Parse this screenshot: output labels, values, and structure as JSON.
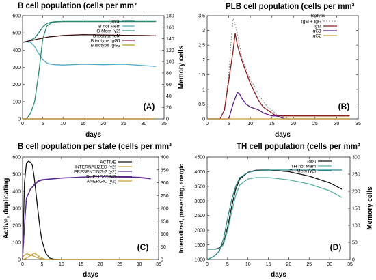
{
  "chart_data": [
    {
      "type": "line",
      "title": "B cell population (cells per mm³",
      "xlabel": "days",
      "ylabel": "",
      "y2label": "Memory cells",
      "panel_label": "(A)",
      "xlim": [
        0,
        35
      ],
      "ylim": [
        0,
        600
      ],
      "y2lim": [
        0,
        180
      ],
      "x_ticks": [
        0,
        5,
        10,
        15,
        20,
        25,
        30,
        35
      ],
      "y_ticks": [
        0,
        100,
        200,
        300,
        400,
        500,
        600
      ],
      "y2_ticks": [
        0,
        20,
        40,
        60,
        80,
        100,
        120,
        140,
        160,
        180
      ],
      "legend_position": "top-right",
      "series": [
        {
          "name": "Total",
          "color": "#1a7a6e",
          "axis": "left",
          "x": [
            0,
            1,
            2,
            3,
            4,
            5,
            6,
            7,
            8,
            10,
            15,
            20,
            25,
            30,
            33
          ],
          "y": [
            445,
            450,
            458,
            470,
            500,
            535,
            555,
            562,
            565,
            566,
            566,
            566,
            566,
            566,
            566
          ]
        },
        {
          "name": "B not Mem",
          "color": "#4aa8c8",
          "axis": "left",
          "x": [
            0,
            1,
            2,
            3,
            4,
            5,
            6,
            7,
            8,
            10,
            15,
            20,
            25,
            30,
            33
          ],
          "y": [
            445,
            448,
            445,
            420,
            380,
            345,
            325,
            318,
            315,
            313,
            318,
            315,
            318,
            310,
            305
          ]
        },
        {
          "name": "B Mem (y2)",
          "color": "#2a8a6a",
          "axis": "right",
          "x": [
            0,
            1,
            2,
            3,
            4,
            5,
            6,
            7,
            8,
            10,
            15,
            20,
            25,
            30,
            33
          ],
          "y": [
            0,
            0,
            10,
            30,
            80,
            140,
            162,
            167,
            169,
            170,
            170,
            170,
            170,
            170,
            170
          ]
        },
        {
          "name": "B isotype IgM",
          "color": "#3a0a0a",
          "axis": "left",
          "x": [
            0,
            1,
            2,
            3,
            4,
            5,
            6,
            7,
            8,
            10,
            15,
            20,
            25,
            30,
            33
          ],
          "y": [
            445,
            450,
            455,
            460,
            465,
            470,
            475,
            478,
            480,
            485,
            490,
            488,
            486,
            485,
            483
          ]
        },
        {
          "name": "B isotype IgG1",
          "color": "#8a1a4a",
          "axis": "left",
          "x": [
            0,
            10,
            20,
            33
          ],
          "y": [
            0,
            0,
            0,
            0
          ]
        },
        {
          "name": "B isotype IgG2",
          "color": "#b89a20",
          "axis": "left",
          "x": [
            0,
            10,
            20,
            33
          ],
          "y": [
            0,
            0,
            0,
            0
          ]
        }
      ]
    },
    {
      "type": "line",
      "title": "PLB cell population (cells per mm³",
      "xlabel": "days",
      "ylabel": "",
      "panel_label": "(B)",
      "xlim": [
        0,
        35
      ],
      "ylim": [
        0,
        3.5
      ],
      "x_ticks": [
        0,
        5,
        10,
        15,
        20,
        25,
        30,
        35
      ],
      "y_ticks": [
        0,
        0.5,
        1,
        1.5,
        2,
        2.5,
        3,
        3.5
      ],
      "legend_title": "Isotype",
      "legend_position": "top-right",
      "series": [
        {
          "name": "IgM + IgG",
          "color": "#888888",
          "dashed": true,
          "x": [
            0,
            3,
            4,
            5,
            5.5,
            6,
            6.5,
            7,
            7.5,
            8,
            9,
            10,
            11,
            12,
            13,
            14,
            15,
            16,
            17,
            18,
            19,
            33
          ],
          "y": [
            0,
            0,
            0.3,
            1.5,
            2.5,
            3.4,
            3.2,
            2.9,
            2.5,
            2.1,
            1.7,
            1.3,
            1.1,
            0.8,
            0.6,
            0.4,
            0.3,
            0.15,
            0.1,
            0.05,
            0,
            0
          ]
        },
        {
          "name": "IgM",
          "color": "#8a1a1a",
          "x": [
            0,
            3,
            4,
            5,
            6,
            6.5,
            7,
            8,
            9,
            10,
            11,
            12,
            13,
            14,
            15,
            16,
            17,
            33
          ],
          "y": [
            0,
            0,
            0.3,
            1.3,
            2.3,
            2.9,
            2.5,
            2.0,
            1.6,
            1.2,
            0.9,
            0.6,
            0.4,
            0.3,
            0.2,
            0.1,
            0.1,
            0.1
          ]
        },
        {
          "name": "IgG1",
          "color": "#5a1a8a",
          "x": [
            0,
            5,
            6,
            7,
            7.5,
            8,
            9,
            10,
            11,
            12,
            13,
            14,
            15,
            16,
            17,
            18,
            19,
            33
          ],
          "y": [
            0,
            0,
            0.5,
            0.9,
            0.85,
            0.7,
            0.5,
            0.4,
            0.35,
            0.3,
            0.2,
            0.15,
            0.1,
            0.1,
            0.05,
            0,
            0,
            0
          ]
        },
        {
          "name": "IgG2",
          "color": "#c8a030",
          "x": [
            0,
            10,
            20,
            33
          ],
          "y": [
            0,
            0,
            0,
            0
          ]
        }
      ]
    },
    {
      "type": "line",
      "title": "B cell population per state (cells per mm³",
      "xlabel": "days",
      "ylabel": "Active, duplicating",
      "y2label": "Internalized, presenting, anergic",
      "panel_label": "(C)",
      "xlim": [
        0,
        35
      ],
      "ylim": [
        0,
        600
      ],
      "y2lim": [
        0,
        400
      ],
      "x_ticks": [
        0,
        5,
        10,
        15,
        20,
        25,
        30,
        35
      ],
      "y_ticks": [
        0,
        100,
        200,
        300,
        400,
        500,
        600
      ],
      "y2_ticks": [
        0,
        50,
        100,
        150,
        200,
        250,
        300,
        350,
        400
      ],
      "legend_position": "top-right",
      "series": [
        {
          "name": "ACTIVE",
          "color": "#111111",
          "axis": "left",
          "x": [
            0,
            0.5,
            1,
            1.5,
            2,
            2.5,
            3,
            3.5,
            4,
            4.5,
            5,
            6,
            7,
            8,
            10,
            33
          ],
          "y": [
            0,
            450,
            565,
            575,
            570,
            555,
            480,
            380,
            280,
            180,
            110,
            35,
            8,
            2,
            0,
            0
          ]
        },
        {
          "name": "INTERNALIZED (y2)",
          "color": "#c8a030",
          "axis": "right",
          "x": [
            0,
            1,
            2,
            3,
            4,
            5,
            6,
            33
          ],
          "y": [
            10,
            22,
            18,
            12,
            6,
            2,
            0,
            0
          ]
        },
        {
          "name": "PRESENTING-2 (y2)",
          "color": "#5a2a8a",
          "axis": "right",
          "x": [
            0,
            0.5,
            1,
            2,
            3,
            4,
            5,
            6,
            7,
            8,
            10,
            15,
            20,
            25,
            30,
            33
          ],
          "y": [
            10,
            130,
            240,
            275,
            290,
            305,
            310,
            312,
            314,
            315,
            318,
            322,
            325,
            322,
            320,
            315
          ]
        },
        {
          "name": "DUPLICATING",
          "color": "#5a2a8a",
          "axis": "left",
          "x": [
            0,
            0.5,
            1,
            2,
            3,
            4,
            5,
            6,
            7,
            8,
            10,
            15,
            20,
            25,
            30,
            33
          ],
          "y": [
            0,
            200,
            360,
            410,
            440,
            460,
            468,
            470,
            472,
            474,
            478,
            482,
            488,
            485,
            482,
            475
          ]
        },
        {
          "name": "ANERGIC (y2)",
          "color": "#c8a030",
          "axis": "right",
          "x": [
            0,
            1,
            2,
            3,
            4,
            5,
            6,
            33
          ],
          "y": [
            0,
            5,
            15,
            25,
            15,
            5,
            0,
            0
          ]
        }
      ]
    },
    {
      "type": "line",
      "title": "TH cell population (cells per mm³",
      "xlabel": "days",
      "ylabel": "",
      "y2label": "Memory cells",
      "panel_label": "(D)",
      "xlim": [
        0,
        35
      ],
      "ylim": [
        1000,
        4500
      ],
      "y2lim": [
        0,
        300
      ],
      "x_ticks": [
        0,
        5,
        10,
        15,
        20,
        25,
        30,
        35
      ],
      "y_ticks": [
        1000,
        1500,
        2000,
        2500,
        3000,
        3500,
        4000,
        4500
      ],
      "y2_ticks": [
        0,
        50,
        100,
        150,
        200,
        250,
        300
      ],
      "legend_position": "top-right",
      "series": [
        {
          "name": "Total",
          "color": "#111111",
          "axis": "left",
          "x": [
            0,
            2,
            3,
            4,
            5,
            6,
            7,
            8,
            10,
            12,
            15,
            20,
            25,
            30,
            33
          ],
          "y": [
            1350,
            1350,
            1400,
            1550,
            2100,
            2800,
            3400,
            3750,
            3980,
            4050,
            4060,
            4000,
            3850,
            3620,
            3400
          ]
        },
        {
          "name": "TH not Mem",
          "color": "#5ab0a0",
          "axis": "left",
          "x": [
            0,
            2,
            3,
            4,
            5,
            6,
            7,
            8,
            10,
            12,
            15,
            20,
            25,
            30,
            33
          ],
          "y": [
            1350,
            1350,
            1380,
            1500,
            2000,
            2600,
            3200,
            3550,
            3750,
            3800,
            3800,
            3720,
            3580,
            3350,
            3120
          ]
        },
        {
          "name": "TH Mem (y2)",
          "color": "#2a8a8a",
          "axis": "right",
          "x": [
            0,
            1,
            2,
            3,
            4,
            5,
            6,
            7,
            8,
            10,
            12,
            15,
            20,
            25,
            30,
            33
          ],
          "y": [
            0,
            5,
            12,
            25,
            60,
            120,
            175,
            215,
            240,
            255,
            260,
            262,
            262,
            262,
            262,
            262
          ]
        }
      ]
    }
  ]
}
